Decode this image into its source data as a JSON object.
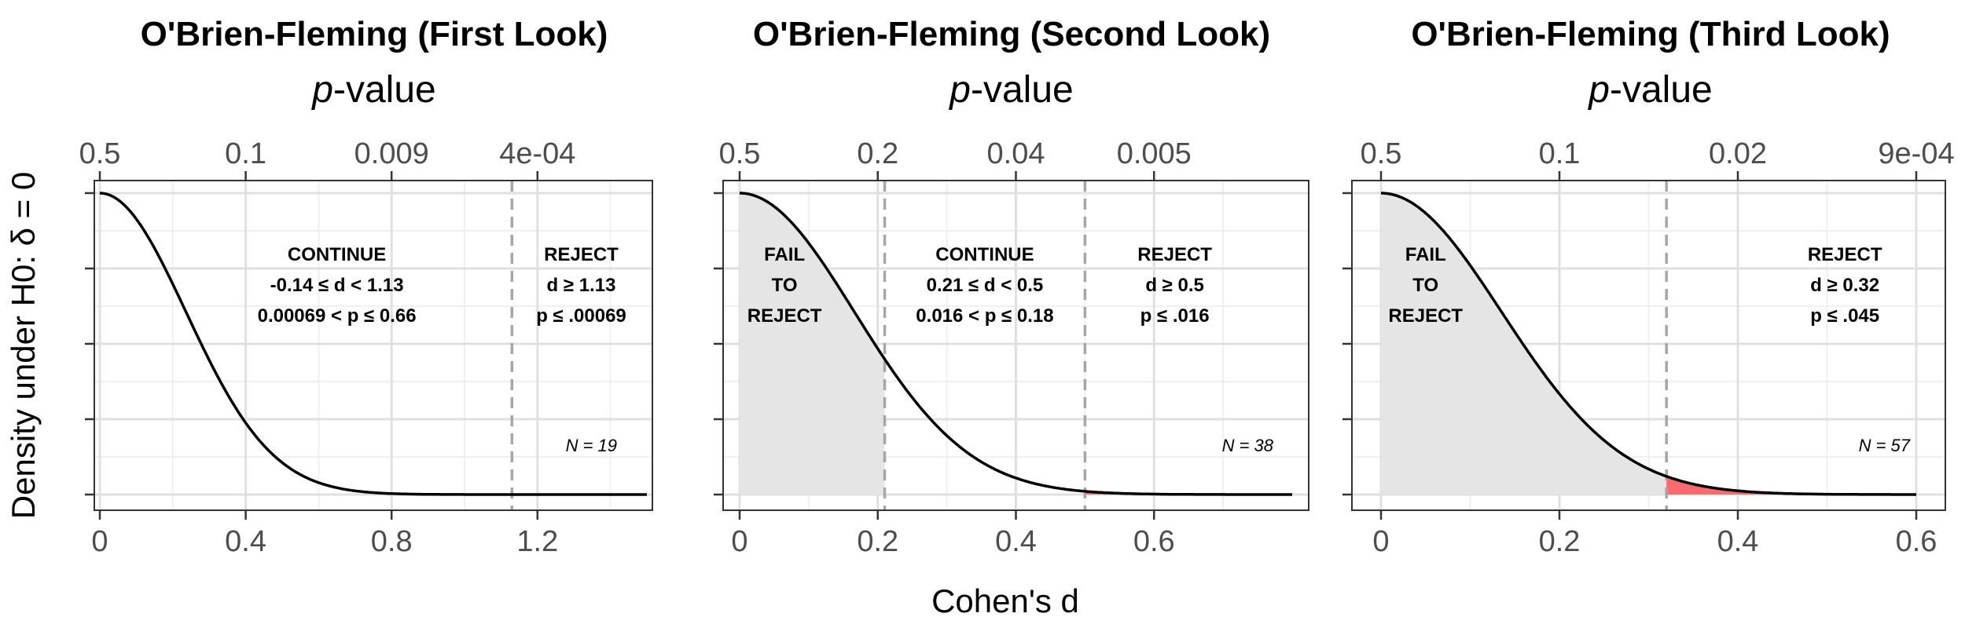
{
  "chart_data": {
    "type": "area",
    "xlabel": "Cohen's d",
    "ylabel": "Density under H0: δ = 0",
    "secondary_x_title": {
      "italic": "p",
      "rest": "-value"
    },
    "grid": true,
    "colors": {
      "fail_region": "#e5e5e5",
      "reject_region": "#ff6a6e",
      "curve": "#000000",
      "boundary": "#a6a6a6",
      "panel_border": "#333333",
      "grid_major": "#e0e0e0",
      "grid_minor": "#f0f0f0",
      "tick_label": "#4d4d4d"
    },
    "panels": [
      {
        "title": "O'Brien-Fleming (First Look)",
        "n": 19,
        "n_label": "N = 19",
        "xlim": [
          0.0,
          1.5
        ],
        "x_ticks": [
          0,
          0.4,
          0.8,
          1.2
        ],
        "x_tick_labels": [
          "0",
          "0.4",
          "0.8",
          "1.2"
        ],
        "p_ticks": [
          0,
          0.4,
          0.8,
          1.2
        ],
        "p_tick_labels": [
          "0.5",
          "0.1",
          "0.009",
          "4e-04"
        ],
        "y_ticks": [
          0.0,
          0.25,
          0.5,
          0.75,
          1.0
        ],
        "curve": {
          "x_start": 0.0,
          "x_end": 1.5,
          "peak": 1.0,
          "sd": 0.236
        },
        "boundaries": [
          1.13
        ],
        "fail_region": null,
        "reject_region": [
          1.13,
          1.5
        ],
        "annotations": [
          {
            "x": 0.65,
            "lines": [
              "CONTINUE",
              "-0.14 ≤ d < 1.13",
              "0.00069 < p ≤ 0.66"
            ]
          },
          {
            "x": 1.32,
            "lines": [
              "REJECT",
              "d ≥ 1.13",
              "p ≤ .00069"
            ]
          }
        ]
      },
      {
        "title": "O'Brien-Fleming (Second Look)",
        "n": 38,
        "n_label": "N = 38",
        "xlim": [
          0.0,
          0.8
        ],
        "x_ticks": [
          0,
          0.2,
          0.4,
          0.6
        ],
        "x_tick_labels": [
          "0",
          "0.2",
          "0.4",
          "0.6"
        ],
        "p_ticks": [
          0,
          0.2,
          0.4,
          0.6
        ],
        "p_tick_labels": [
          "0.5",
          "0.2",
          "0.04",
          "0.005"
        ],
        "y_ticks": [
          0.0,
          0.25,
          0.5,
          0.75,
          1.0
        ],
        "curve": {
          "x_start": 0.0,
          "x_end": 0.8,
          "peak": 1.0,
          "sd": 0.166
        },
        "boundaries": [
          0.21,
          0.5
        ],
        "fail_region": [
          0.0,
          0.21
        ],
        "reject_region": [
          0.5,
          0.8
        ],
        "annotations": [
          {
            "x": 0.065,
            "lines": [
              "FAIL",
              "TO",
              "REJECT"
            ]
          },
          {
            "x": 0.355,
            "lines": [
              "CONTINUE",
              "0.21 ≤ d < 0.5",
              "0.016 < p ≤ 0.18"
            ]
          },
          {
            "x": 0.63,
            "lines": [
              "REJECT",
              "d ≥ 0.5",
              "p ≤ .016"
            ]
          }
        ]
      },
      {
        "title": "O'Brien-Fleming (Third Look)",
        "n": 57,
        "n_label": "N = 57",
        "xlim": [
          0.0,
          0.6
        ],
        "x_ticks": [
          0,
          0.2,
          0.4,
          0.6
        ],
        "x_tick_labels": [
          "0",
          "0.2",
          "0.4",
          "0.6"
        ],
        "p_ticks": [
          0,
          0.2,
          0.4,
          0.6
        ],
        "p_tick_labels": [
          "0.5",
          "0.1",
          "0.02",
          "9e-04"
        ],
        "y_ticks": [
          0.0,
          0.25,
          0.5,
          0.75,
          1.0
        ],
        "curve": {
          "x_start": 0.0,
          "x_end": 0.6,
          "peak": 1.0,
          "sd": 0.135
        },
        "boundaries": [
          0.32
        ],
        "fail_region": [
          0.0,
          0.32
        ],
        "reject_region": [
          0.32,
          0.6
        ],
        "annotations": [
          {
            "x": 0.05,
            "lines": [
              "FAIL",
              "TO",
              "REJECT"
            ]
          },
          {
            "x": 0.52,
            "lines": [
              "REJECT",
              "d ≥ 0.32",
              "p ≤ .045"
            ]
          }
        ]
      }
    ]
  }
}
